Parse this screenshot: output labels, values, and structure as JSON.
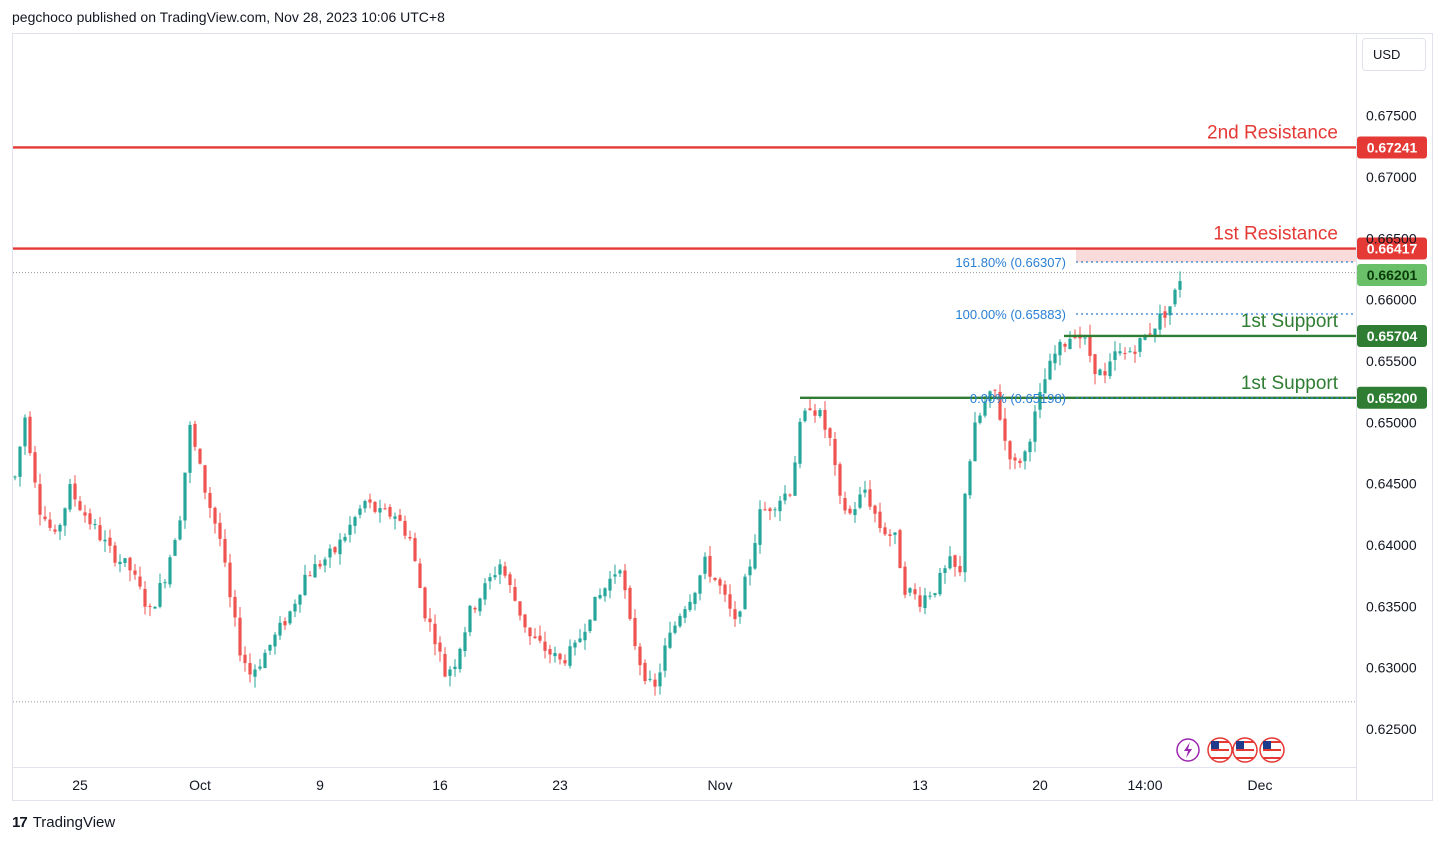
{
  "header": {
    "publisher_text": "pegchoco published on TradingView.com, Nov 28, 2023 10:06 UTC+8"
  },
  "toolbar": {
    "currency_label": "USD"
  },
  "footer": {
    "brand_label": "TradingView",
    "brand_mark": "17"
  },
  "colors": {
    "up": "#26a69a",
    "down": "#ef5350",
    "resistance": "#e53935",
    "support": "#2e7d32",
    "fib": "#2a7fd4",
    "current_price": "#6abf69",
    "grid": "#e0e3eb"
  },
  "icons": [
    "lightning-icon",
    "us-flag-icon",
    "us-flag-icon",
    "us-flag-icon"
  ],
  "chart_data": {
    "type": "candlestick",
    "y_axis": {
      "ylim": [
        0.6223,
        0.6815
      ],
      "tick_values": [
        0.675,
        0.67,
        0.665,
        0.66,
        0.655,
        0.65,
        0.645,
        0.64,
        0.635,
        0.63,
        0.625
      ],
      "tick_labels": [
        "0.67500",
        "0.67000",
        "0.66500",
        "0.66000",
        "0.65500",
        "0.65000",
        "0.64500",
        "0.64000",
        "0.63500",
        "0.63000",
        "0.62500"
      ]
    },
    "x_axis": {
      "tick_labels": [
        "25",
        "Oct",
        "9",
        "16",
        "23",
        "Nov",
        "13",
        "20",
        "14:00",
        "Dec"
      ],
      "tick_index": [
        13,
        37,
        61,
        85,
        109,
        141,
        181,
        205,
        226,
        249
      ]
    },
    "levels": [
      {
        "label": "2nd Resistance",
        "value": 0.67241,
        "tag": "0.67241",
        "kind": "resistance"
      },
      {
        "label": "1st Resistance",
        "value": 0.66417,
        "tag": "0.66417",
        "kind": "resistance"
      },
      {
        "label": "1st Support",
        "value": 0.65704,
        "tag": "0.65704",
        "kind": "support"
      },
      {
        "label": "1st Support",
        "value": 0.652,
        "tag": "0.65200",
        "kind": "support"
      }
    ],
    "fib_levels": [
      {
        "label": "161.80% (0.66307)",
        "value": 0.66307
      },
      {
        "label": "100.00% (0.65883)",
        "value": 0.65883
      },
      {
        "label": "0.00% (0.65198)",
        "value": 0.65198
      }
    ],
    "current_price": {
      "value": 0.66201,
      "tag": "0.66201"
    },
    "range_high": 0.6622,
    "range_low": 0.6272,
    "trend_anchors": [
      [
        0,
        0.6455
      ],
      [
        2,
        0.6505
      ],
      [
        5,
        0.643
      ],
      [
        8,
        0.6405
      ],
      [
        11,
        0.6445
      ],
      [
        14,
        0.6425
      ],
      [
        19,
        0.6395
      ],
      [
        23,
        0.638
      ],
      [
        27,
        0.6345
      ],
      [
        30,
        0.6375
      ],
      [
        33,
        0.6425
      ],
      [
        35,
        0.6495
      ],
      [
        38,
        0.6445
      ],
      [
        41,
        0.6405
      ],
      [
        43,
        0.6355
      ],
      [
        45,
        0.6315
      ],
      [
        47,
        0.6295
      ],
      [
        49,
        0.6305
      ],
      [
        52,
        0.6325
      ],
      [
        55,
        0.6345
      ],
      [
        58,
        0.6375
      ],
      [
        61,
        0.6385
      ],
      [
        64,
        0.6395
      ],
      [
        67,
        0.6415
      ],
      [
        70,
        0.6435
      ],
      [
        73,
        0.6425
      ],
      [
        76,
        0.6425
      ],
      [
        79,
        0.6405
      ],
      [
        82,
        0.6345
      ],
      [
        84,
        0.6325
      ],
      [
        86,
        0.6295
      ],
      [
        88,
        0.6305
      ],
      [
        91,
        0.6345
      ],
      [
        94,
        0.6365
      ],
      [
        97,
        0.6385
      ],
      [
        100,
        0.6355
      ],
      [
        103,
        0.6325
      ],
      [
        106,
        0.6315
      ],
      [
        109,
        0.6305
      ],
      [
        112,
        0.6315
      ],
      [
        115,
        0.6345
      ],
      [
        118,
        0.6365
      ],
      [
        121,
        0.6385
      ],
      [
        123,
        0.6335
      ],
      [
        125,
        0.6305
      ],
      [
        127,
        0.6285
      ],
      [
        128,
        0.6282
      ],
      [
        130,
        0.6315
      ],
      [
        133,
        0.6345
      ],
      [
        136,
        0.6365
      ],
      [
        138,
        0.6385
      ],
      [
        141,
        0.6365
      ],
      [
        144,
        0.6335
      ],
      [
        147,
        0.6385
      ],
      [
        149,
        0.6425
      ],
      [
        152,
        0.6435
      ],
      [
        155,
        0.6445
      ],
      [
        157,
        0.6495
      ],
      [
        159,
        0.6515
      ],
      [
        161,
        0.6505
      ],
      [
        163,
        0.6485
      ],
      [
        165,
        0.6435
      ],
      [
        167,
        0.6425
      ],
      [
        170,
        0.6445
      ],
      [
        173,
        0.6415
      ],
      [
        176,
        0.6405
      ],
      [
        178,
        0.6365
      ],
      [
        181,
        0.6355
      ],
      [
        184,
        0.6365
      ],
      [
        187,
        0.6385
      ],
      [
        189,
        0.6375
      ],
      [
        190,
        0.6445
      ],
      [
        192,
        0.6495
      ],
      [
        194,
        0.6515
      ],
      [
        196,
        0.6525
      ],
      [
        198,
        0.6485
      ],
      [
        200,
        0.6465
      ],
      [
        202,
        0.6475
      ],
      [
        204,
        0.6505
      ],
      [
        206,
        0.6535
      ],
      [
        208,
        0.6555
      ],
      [
        210,
        0.6565
      ],
      [
        212,
        0.6575
      ],
      [
        214,
        0.6565
      ],
      [
        216,
        0.6545
      ],
      [
        218,
        0.6535
      ],
      [
        220,
        0.6555
      ],
      [
        222,
        0.6555
      ],
      [
        225,
        0.6565
      ],
      [
        227,
        0.6575
      ],
      [
        229,
        0.6585
      ],
      [
        231,
        0.6595
      ],
      [
        232,
        0.6605
      ],
      [
        233,
        0.6618
      ]
    ]
  }
}
